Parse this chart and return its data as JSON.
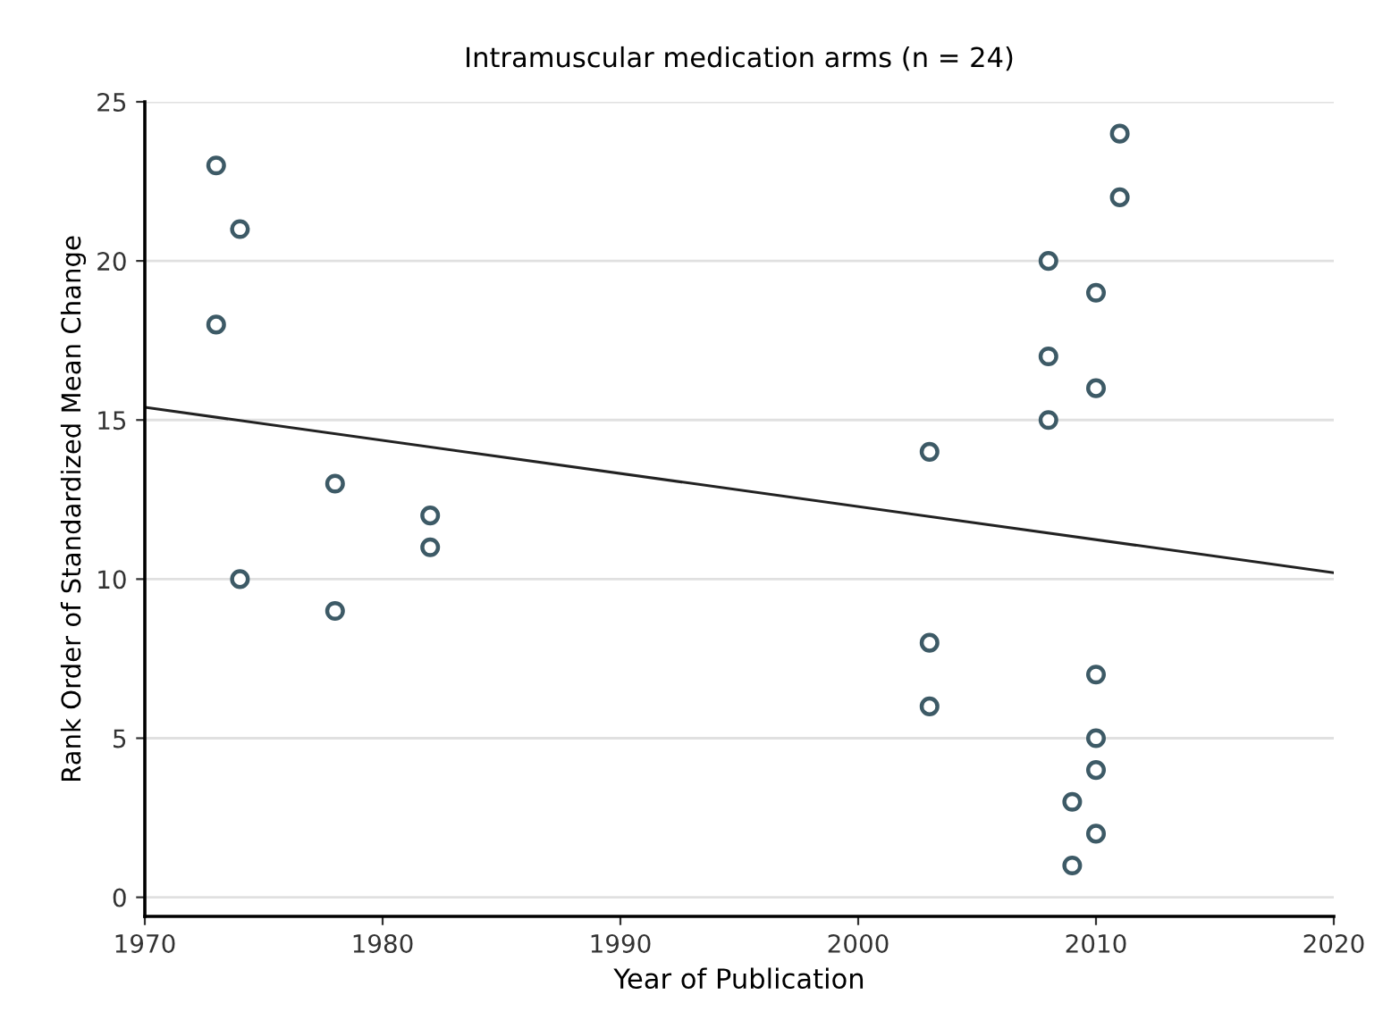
{
  "chart_data": {
    "type": "scatter",
    "title": "Intramuscular medication arms (n = 24)",
    "xlabel": "Year of Publication",
    "ylabel": "Rank Order of Standardized Mean Change",
    "xlim": [
      1970,
      2020
    ],
    "xticks": [
      1970,
      1980,
      1990,
      2000,
      2010,
      2020
    ],
    "ylim": [
      -0.6,
      25
    ],
    "yticks": [
      0,
      5,
      10,
      15,
      20,
      25
    ],
    "grid": "y",
    "marker": "circle",
    "series": [
      {
        "color": "#3d5a66",
        "x": [
          1973,
          1974,
          1973,
          1978,
          1982,
          1982,
          1974,
          1978,
          2003,
          2003,
          2003,
          2008,
          2008,
          2008,
          2010,
          2010,
          2011,
          2011,
          2010,
          2010,
          2010,
          2009,
          2010,
          2009
        ],
        "values": [
          23,
          21,
          18,
          13,
          12,
          11,
          10,
          9,
          14,
          8,
          6,
          20,
          17,
          15,
          19,
          16,
          24,
          22,
          7,
          5,
          4,
          3,
          2,
          1
        ]
      },
      {
        "type": "line",
        "marker": "none",
        "color": "#222222",
        "x": [
          1970,
          2020
        ],
        "values": [
          15.4,
          10.2
        ]
      }
    ]
  }
}
